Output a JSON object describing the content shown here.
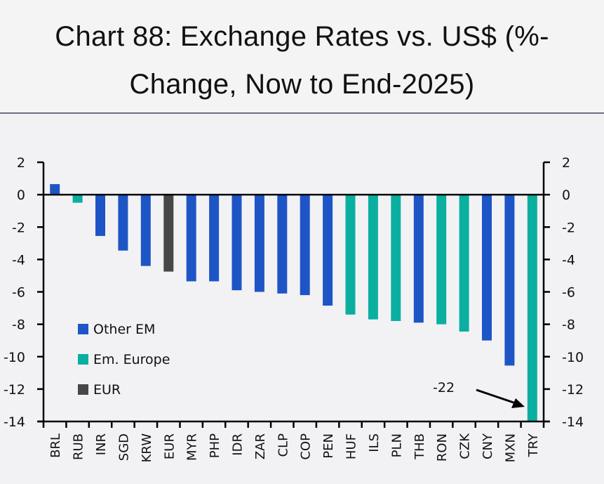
{
  "header": {
    "title_line1": "Chart 88: Exchange Rates vs. US$ (%-",
    "title_line2": "Change, Now to End-2025)"
  },
  "chart_data": {
    "type": "bar",
    "title": "Chart 88: Exchange Rates vs. US$ (%-Change, Now to End-2025)",
    "xlabel": "",
    "ylabel": "",
    "ylim": [
      -14,
      2
    ],
    "yticks": [
      2,
      0,
      -2,
      -4,
      -6,
      -8,
      -10,
      -12,
      -14
    ],
    "grid": false,
    "dual_y_axis": true,
    "legend_position": "bottom-left",
    "categories": [
      "BRL",
      "RUB",
      "INR",
      "SGD",
      "KRW",
      "EUR",
      "MYR",
      "PHP",
      "IDR",
      "ZAR",
      "CLP",
      "COP",
      "PEN",
      "HUF",
      "ILS",
      "PLN",
      "THB",
      "RON",
      "CZK",
      "CNY",
      "MXN",
      "TRY"
    ],
    "values": [
      0.65,
      -0.5,
      -2.55,
      -3.45,
      -4.4,
      -4.75,
      -5.35,
      -5.35,
      -5.9,
      -6.0,
      -6.1,
      -6.2,
      -6.85,
      -7.4,
      -7.7,
      -7.8,
      -7.9,
      -8.0,
      -8.45,
      -9.0,
      -10.55,
      -22
    ],
    "groups": [
      "Other EM",
      "Em. Europe",
      "Other EM",
      "Other EM",
      "Other EM",
      "EUR",
      "Other EM",
      "Other EM",
      "Other EM",
      "Other EM",
      "Other EM",
      "Other EM",
      "Other EM",
      "Em. Europe",
      "Em. Europe",
      "Em. Europe",
      "Other EM",
      "Em. Europe",
      "Em. Europe",
      "Other EM",
      "Other EM",
      "Em. Europe"
    ],
    "series": [
      {
        "name": "Other EM",
        "color": "#1e55c6"
      },
      {
        "name": "Em. Europe",
        "color": "#0bafa0"
      },
      {
        "name": "EUR",
        "color": "#474747"
      }
    ],
    "annotations": [
      {
        "text": "-22",
        "target": "TRY",
        "note": "bar truncated at axis minimum"
      }
    ]
  }
}
